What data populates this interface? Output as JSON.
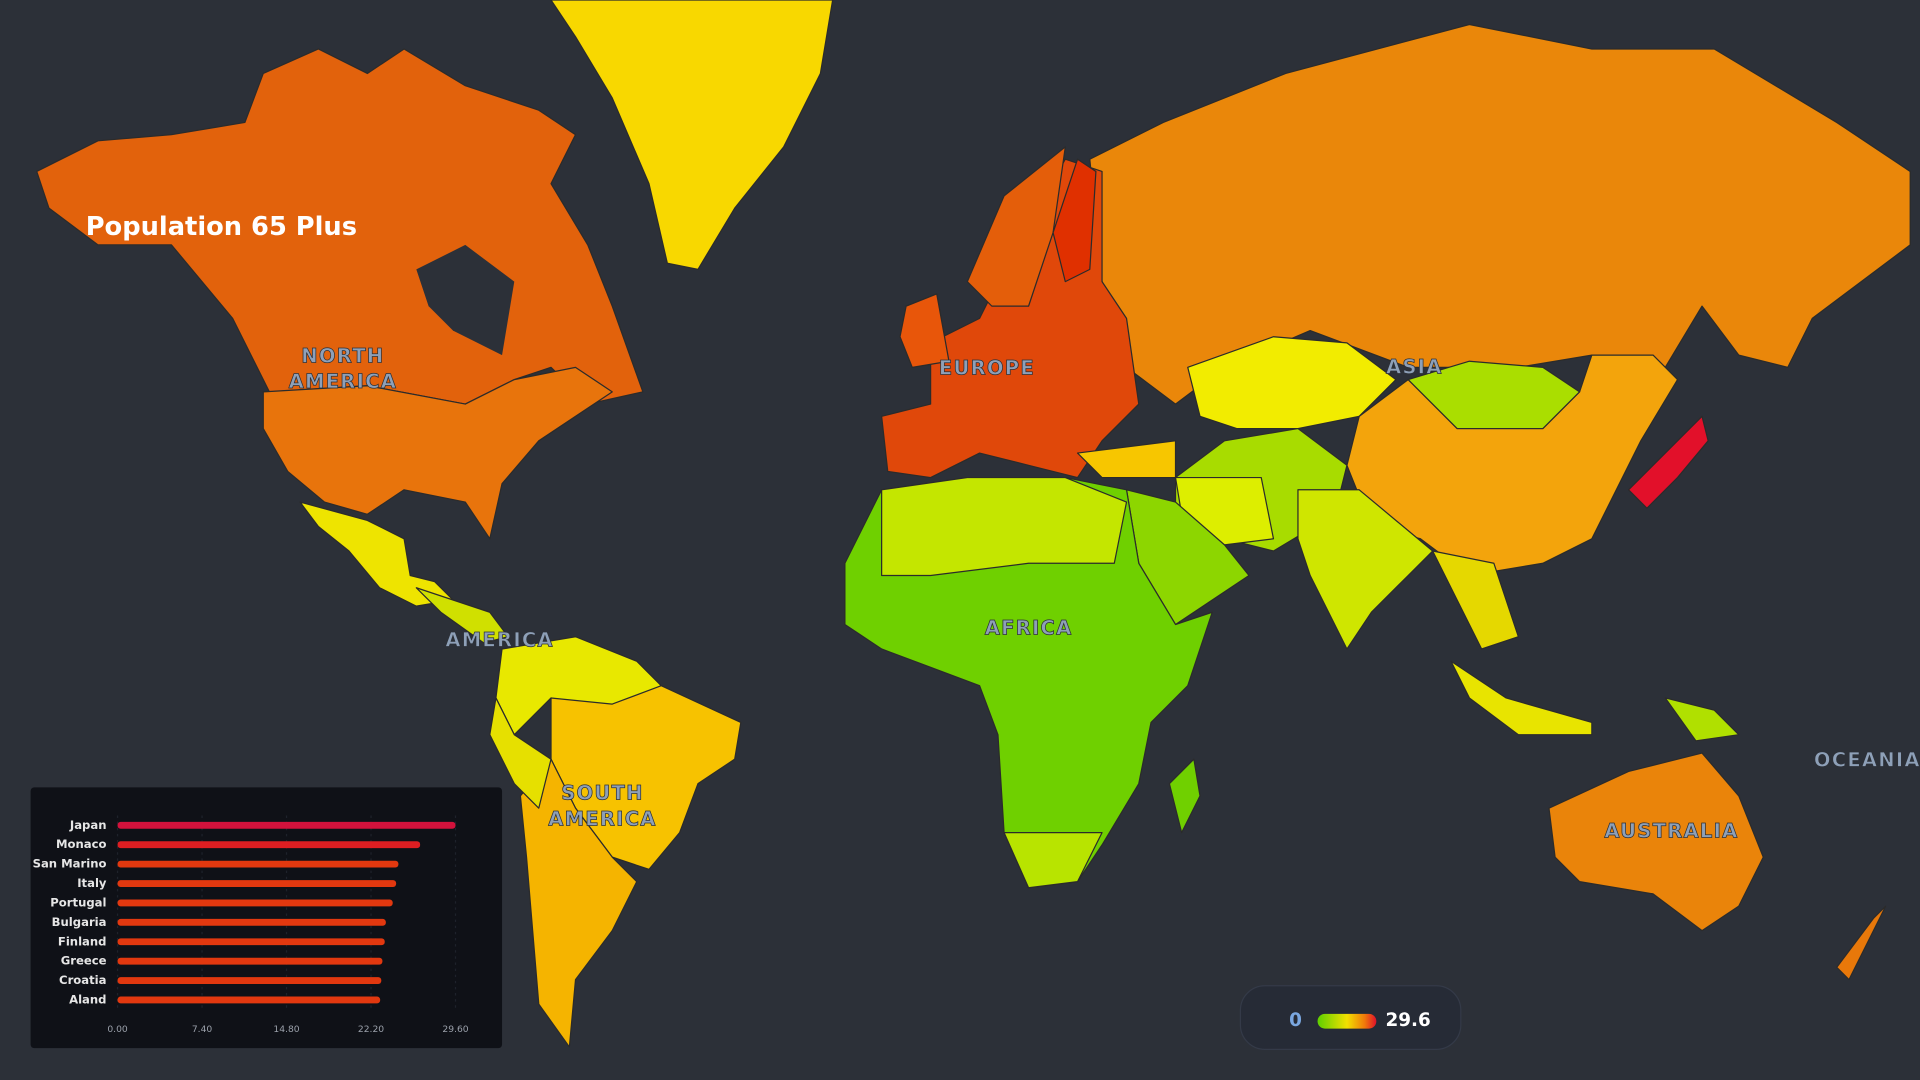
{
  "title": "Population 65 Plus",
  "regions": [
    [
      "NORTH",
      "AMERICA"
    ],
    [
      "EUROPE"
    ],
    [
      "ASIA"
    ],
    [
      "AMERICA"
    ],
    [
      "AFRICA"
    ],
    [
      "SOUTH",
      "AMERICA"
    ],
    [
      "AUSTRALIA"
    ],
    [
      "OCEANIA"
    ]
  ],
  "legend": {
    "min": 0,
    "max": 29.6
  },
  "chart_data": {
    "type": "bar",
    "orientation": "horizontal",
    "categories": [
      "Japan",
      "Monaco",
      "San Marino",
      "Italy",
      "Portugal",
      "Bulgaria",
      "Finland",
      "Greece",
      "Croatia",
      "Aland"
    ],
    "values": [
      29.6,
      26.5,
      24.6,
      24.4,
      24.1,
      23.5,
      23.4,
      23.2,
      23.1,
      23.0
    ],
    "colors": [
      "#d3123c",
      "#dd1e22",
      "#e2380f",
      "#e2380f",
      "#e2380f",
      "#e2380f",
      "#e2380f",
      "#e2380f",
      "#e2380f",
      "#e2380f"
    ],
    "xlim": [
      0,
      29.6
    ],
    "xticks": [
      {
        "value": 0,
        "label": "0.00"
      },
      {
        "value": 7.4,
        "label": "7.40"
      },
      {
        "value": 14.8,
        "label": "14.80"
      },
      {
        "value": 22.2,
        "label": "22.20"
      },
      {
        "value": 29.6,
        "label": "29.60"
      }
    ],
    "grid": true
  }
}
